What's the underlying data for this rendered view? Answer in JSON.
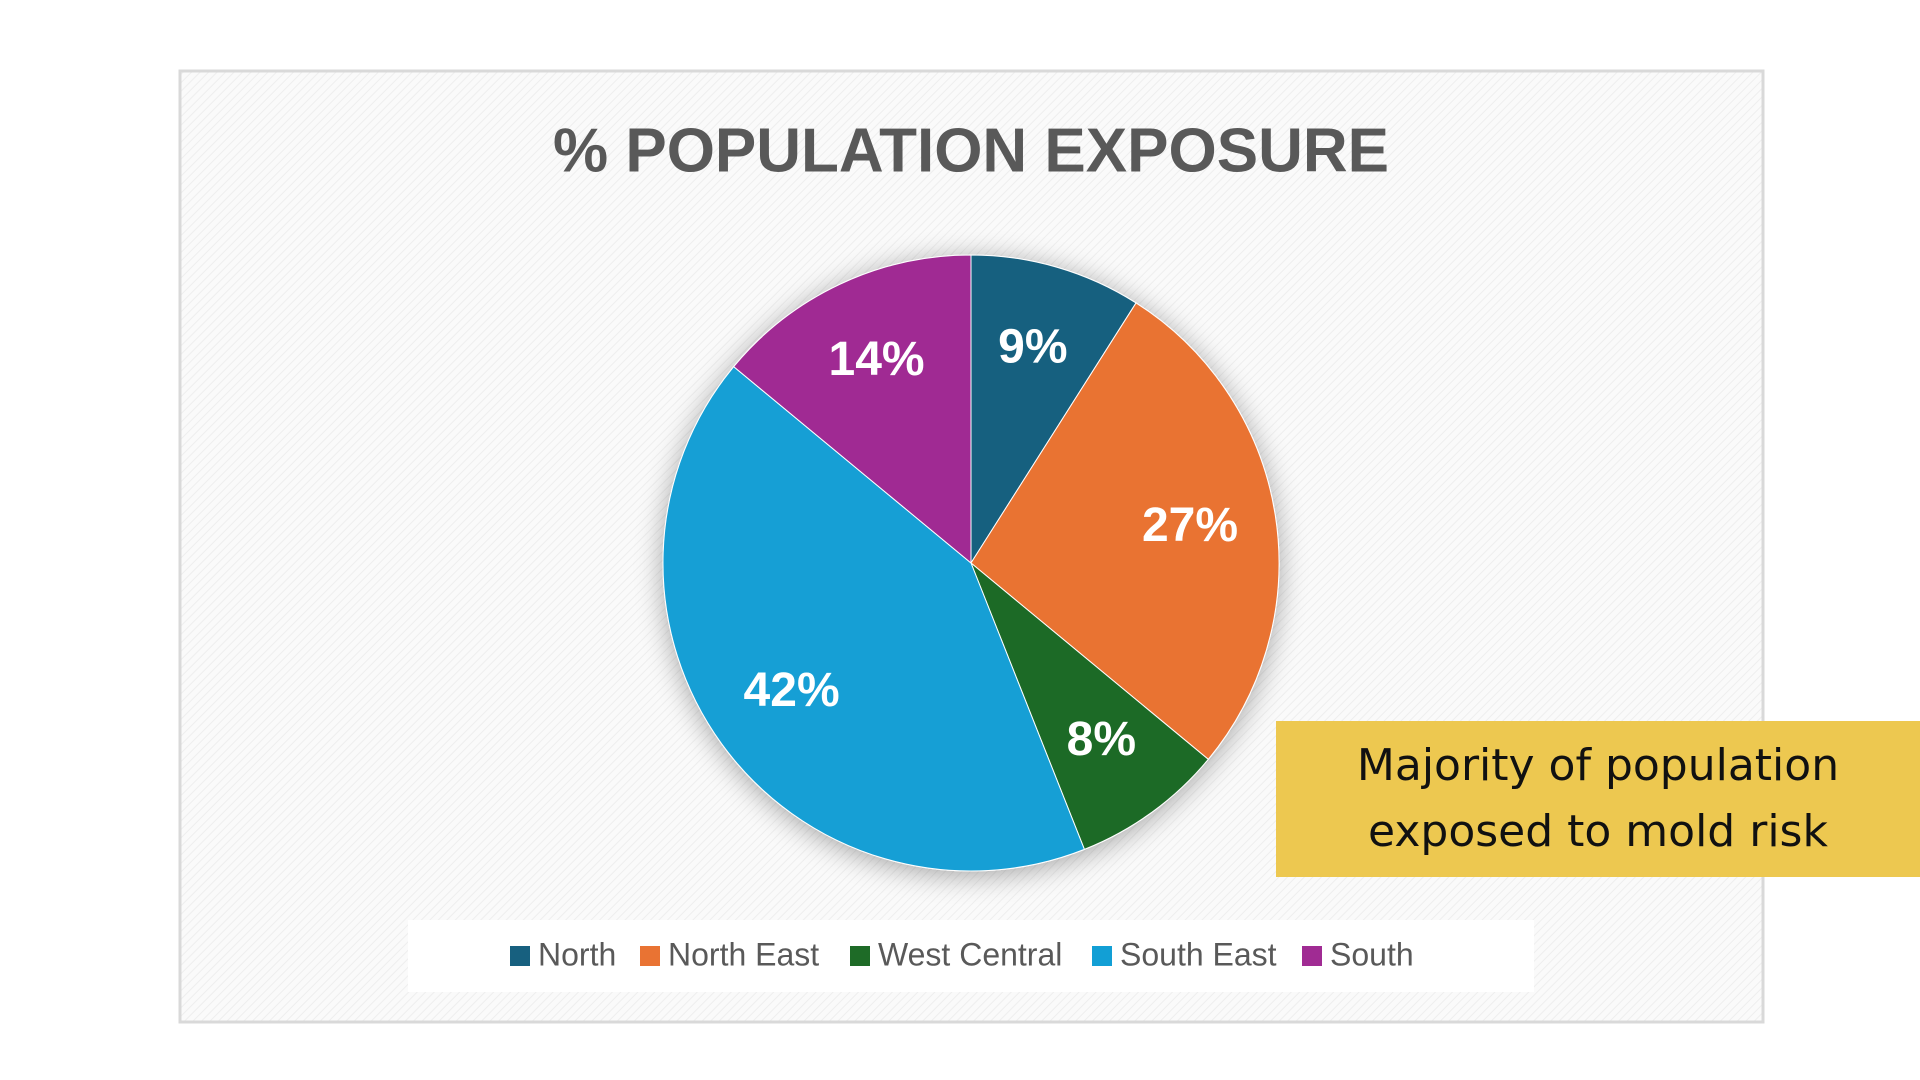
{
  "chart_data": {
    "type": "pie",
    "title": "% POPULATION EXPOSURE",
    "categories": [
      "North",
      "North East",
      "West Central",
      "South East",
      "South"
    ],
    "values": [
      9,
      27,
      8,
      42,
      14
    ],
    "value_labels": [
      "9%",
      "27%",
      "8%",
      "42%",
      "14%"
    ],
    "colors": [
      "#17607f",
      "#e97333",
      "#1e6b27",
      "#129fd5",
      "#a02b93"
    ],
    "legend": "bottom",
    "annotation": "Majority of population exposed to mold risk"
  }
}
